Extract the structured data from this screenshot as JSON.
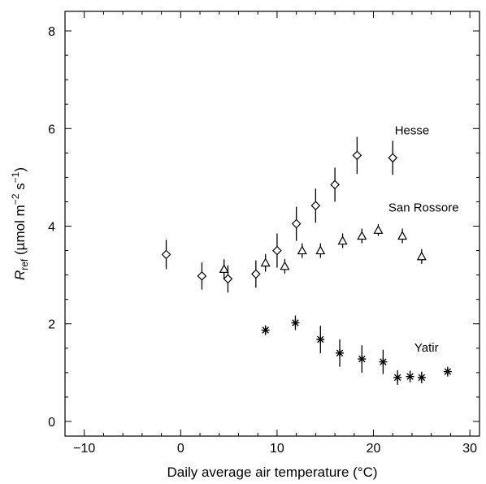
{
  "chart_data": {
    "type": "scatter",
    "xlabel": "Daily average air temperature (°C)",
    "ylabel": {
      "main": "R",
      "sub": "ref",
      "units_pre": " (µmol m",
      "sup1": "−2",
      "mid": " s",
      "sup2": "−1",
      "units_post": ")"
    },
    "xlim": [
      -12,
      31
    ],
    "ylim": [
      -0.3,
      8.4
    ],
    "xticks_major": [
      -10,
      0,
      10,
      20,
      30
    ],
    "xtick_labels": [
      "−10",
      "0",
      "10",
      "20",
      "30"
    ],
    "yticks_major": [
      0,
      2,
      4,
      6,
      8
    ],
    "ytick_labels": [
      "0",
      "2",
      "4",
      "6",
      "8"
    ],
    "grid": false,
    "series": [
      {
        "name": "Hesse",
        "marker": "diamond",
        "points": [
          {
            "x": -1.5,
            "y": 3.42,
            "err": 0.3
          },
          {
            "x": 2.2,
            "y": 2.98,
            "err": 0.28
          },
          {
            "x": 4.9,
            "y": 2.92,
            "err": 0.28
          },
          {
            "x": 7.8,
            "y": 3.02,
            "err": 0.28
          },
          {
            "x": 10.0,
            "y": 3.5,
            "err": 0.35
          },
          {
            "x": 12.0,
            "y": 4.05,
            "err": 0.35
          },
          {
            "x": 14.0,
            "y": 4.42,
            "err": 0.35
          },
          {
            "x": 16.0,
            "y": 4.85,
            "err": 0.35
          },
          {
            "x": 18.3,
            "y": 5.45,
            "err": 0.38
          },
          {
            "x": 22.0,
            "y": 5.4,
            "err": 0.35
          }
        ]
      },
      {
        "name": "San Rossore",
        "marker": "triangle",
        "points": [
          {
            "x": 4.5,
            "y": 3.12,
            "err": 0.2
          },
          {
            "x": 8.8,
            "y": 3.25,
            "err": 0.18
          },
          {
            "x": 10.8,
            "y": 3.18,
            "err": 0.15
          },
          {
            "x": 12.6,
            "y": 3.5,
            "err": 0.15
          },
          {
            "x": 14.5,
            "y": 3.5,
            "err": 0.15
          },
          {
            "x": 16.8,
            "y": 3.7,
            "err": 0.15
          },
          {
            "x": 18.8,
            "y": 3.8,
            "err": 0.15
          },
          {
            "x": 20.5,
            "y": 3.92,
            "err": 0.12
          },
          {
            "x": 23.0,
            "y": 3.8,
            "err": 0.15
          },
          {
            "x": 25.0,
            "y": 3.38,
            "err": 0.15
          }
        ]
      },
      {
        "name": "Yatir",
        "marker": "star",
        "points": [
          {
            "x": 8.8,
            "y": 1.87,
            "err": 0.1
          },
          {
            "x": 11.9,
            "y": 2.02,
            "err": 0.15
          },
          {
            "x": 14.5,
            "y": 1.68,
            "err": 0.28
          },
          {
            "x": 16.5,
            "y": 1.4,
            "err": 0.28
          },
          {
            "x": 18.8,
            "y": 1.28,
            "err": 0.28
          },
          {
            "x": 21.0,
            "y": 1.22,
            "err": 0.25
          },
          {
            "x": 22.5,
            "y": 0.9,
            "err": 0.15
          },
          {
            "x": 23.8,
            "y": 0.92,
            "err": 0.12
          },
          {
            "x": 25.0,
            "y": 0.9,
            "err": 0.12
          },
          {
            "x": 27.7,
            "y": 1.02,
            "err": 0.1
          }
        ]
      }
    ],
    "annotations": [
      {
        "text": "Hesse",
        "x": 24.0,
        "y": 5.88
      },
      {
        "text": "San Rossore",
        "x": 25.2,
        "y": 4.3
      },
      {
        "text": "Yatir",
        "x": 25.5,
        "y": 1.43
      }
    ]
  }
}
